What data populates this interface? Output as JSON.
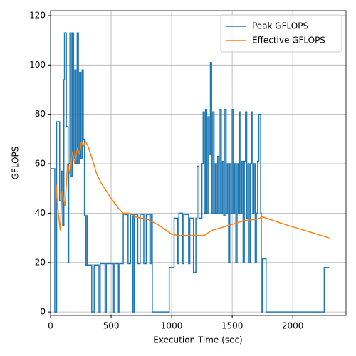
{
  "chart_data": {
    "type": "line",
    "xlabel": "Execution Time (sec)",
    "ylabel": "GFLOPS",
    "xlim": [
      0,
      2440
    ],
    "ylim": [
      -1.4,
      122
    ],
    "xticks": [
      0,
      500,
      1000,
      1500,
      2000
    ],
    "yticks": [
      0,
      20,
      40,
      60,
      80,
      100,
      120
    ],
    "grid": true,
    "legend": "upper right",
    "series": [
      {
        "name": "Peak GFLOPS",
        "color": "#1f77b4",
        "drawstyle": "steps-post",
        "x": [
          0,
          35,
          50,
          75,
          90,
          100,
          110,
          115,
          130,
          145,
          150,
          160,
          170,
          180,
          190,
          200,
          210,
          220,
          230,
          240,
          250,
          260,
          270,
          280,
          290,
          300,
          305,
          340,
          360,
          400,
          410,
          450,
          460,
          520,
          530,
          560,
          570,
          600,
          640,
          660,
          680,
          690,
          720,
          740,
          770,
          790,
          820,
          830,
          840,
          980,
          1020,
          1050,
          1060,
          1090,
          1100,
          1140,
          1150,
          1180,
          1200,
          1210,
          1225,
          1250,
          1260,
          1270,
          1280,
          1290,
          1300,
          1310,
          1320,
          1330,
          1340,
          1350,
          1360,
          1370,
          1380,
          1390,
          1400,
          1410,
          1420,
          1430,
          1440,
          1450,
          1460,
          1470,
          1480,
          1490,
          1500,
          1510,
          1520,
          1530,
          1540,
          1550,
          1560,
          1570,
          1580,
          1590,
          1600,
          1610,
          1620,
          1630,
          1640,
          1650,
          1660,
          1670,
          1680,
          1690,
          1700,
          1710,
          1720,
          1735,
          1740,
          1750,
          1780,
          2260,
          2300
        ],
        "values": [
          58,
          0,
          77,
          45,
          57,
          35,
          94,
          113,
          75,
          20,
          60,
          113,
          55,
          113,
          62,
          98,
          60,
          113,
          60,
          97,
          62,
          98,
          70,
          39,
          19,
          39,
          19,
          0,
          19,
          0,
          19.5,
          0,
          19.5,
          0,
          19.5,
          0,
          19.5,
          39.5,
          19.5,
          39.5,
          0,
          39.5,
          19.5,
          39.5,
          19.5,
          39.5,
          19.5,
          39.5,
          0,
          18,
          38,
          19.5,
          40,
          19.5,
          39.5,
          19.5,
          38,
          16,
          38,
          59,
          38,
          60,
          81,
          40,
          82,
          40,
          79,
          64,
          101,
          40,
          81,
          40,
          60,
          40,
          63,
          40,
          82,
          40,
          61,
          39,
          82,
          40,
          60,
          20,
          60,
          40,
          82,
          40,
          60,
          20,
          60,
          40,
          81,
          40,
          61,
          20,
          61,
          81,
          38,
          60,
          20,
          60,
          81,
          40,
          60,
          20,
          40,
          61,
          80,
          40,
          0,
          21.5,
          0,
          18,
          18
        ]
      },
      {
        "name": "Effective GFLOPS",
        "color": "#ff7f0e",
        "drawstyle": "default",
        "x": [
          40,
          45,
          60,
          80,
          95,
          120,
          140,
          160,
          180,
          200,
          220,
          240,
          255,
          270,
          290,
          310,
          350,
          380,
          420,
          500,
          560,
          600,
          650,
          700,
          800,
          900,
          1000,
          1050,
          1200,
          1270,
          1300,
          1330,
          1400,
          1500,
          1600,
          1700,
          1750,
          1900,
          2100,
          2300
        ],
        "values": [
          18,
          52,
          42,
          33,
          49,
          43,
          60,
          56,
          65,
          60,
          66,
          64,
          69,
          67,
          69,
          67,
          61,
          56,
          52,
          46,
          42,
          40,
          40,
          38.5,
          37.5,
          35,
          31.5,
          31,
          31,
          31,
          32,
          33,
          34,
          35.5,
          37,
          37.5,
          38.5,
          36,
          33,
          30
        ]
      }
    ]
  }
}
